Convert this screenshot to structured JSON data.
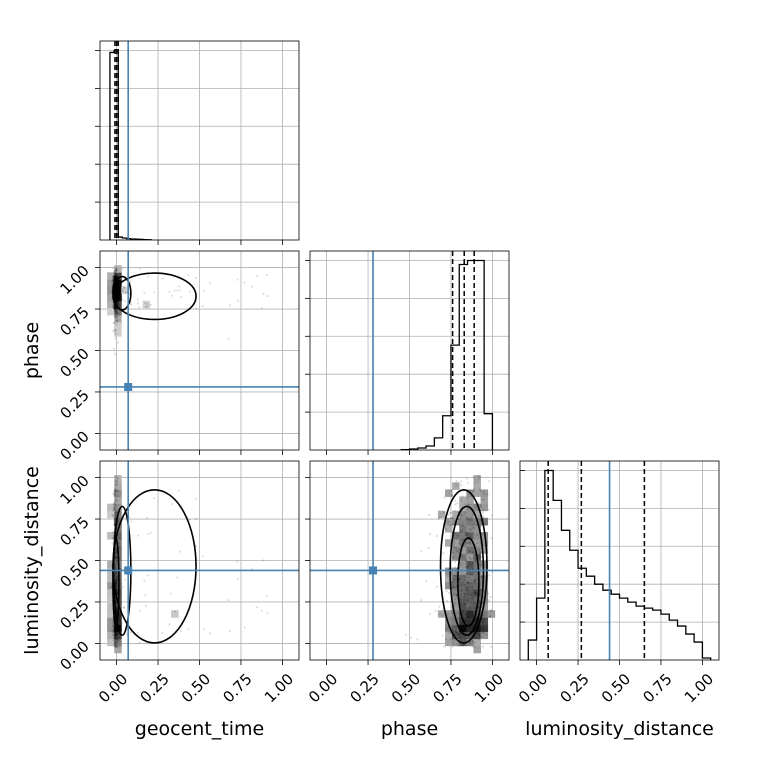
{
  "chart_data": {
    "type": "corner",
    "parameters": [
      "geocent_time",
      "phase",
      "luminosity_distance"
    ],
    "axis_labels": {
      "x": [
        "geocent_time",
        "phase",
        "luminosity_distance"
      ],
      "y": [
        "",
        "phase",
        "luminosity_distance"
      ]
    },
    "tick_values": [
      0.0,
      0.25,
      0.5,
      0.75,
      1.0
    ],
    "tick_labels": [
      "0.00",
      "0.25",
      "0.50",
      "0.75",
      "1.00"
    ],
    "ranges": {
      "geocent_time": [
        -0.1,
        1.1
      ],
      "phase": [
        -0.1,
        1.1
      ],
      "luminosity_distance": [
        -0.1,
        1.1
      ]
    },
    "truths": {
      "geocent_time": 0.07,
      "phase": 0.28,
      "luminosity_distance": 0.44
    },
    "truth_color": "#4682b4",
    "grid": true,
    "histograms": {
      "geocent_time": {
        "bins": [
          -0.04,
          -0.015,
          0.01,
          0.035,
          0.06,
          0.085,
          0.11,
          0.135,
          0.16,
          0.185,
          0.21
        ],
        "counts": [
          0.95,
          0.96,
          0.015,
          0.01,
          0.007,
          0.005,
          0.004,
          0.003,
          0.002,
          0.001
        ],
        "quantiles": [
          -0.01,
          0.0,
          0.01
        ]
      },
      "phase": {
        "bins": [
          0.45,
          0.5,
          0.55,
          0.6,
          0.65,
          0.7,
          0.75,
          0.8,
          0.85,
          0.9,
          0.95,
          1.0
        ],
        "counts": [
          0.002,
          0.005,
          0.01,
          0.02,
          0.06,
          0.17,
          0.52,
          0.92,
          0.94,
          0.94,
          0.18
        ],
        "quantiles": [
          0.76,
          0.83,
          0.89
        ]
      },
      "luminosity_distance": {
        "bins": [
          -0.05,
          0.0,
          0.05,
          0.1,
          0.15,
          0.2,
          0.25,
          0.3,
          0.35,
          0.4,
          0.45,
          0.5,
          0.55,
          0.6,
          0.65,
          0.7,
          0.75,
          0.8,
          0.85,
          0.9,
          0.95,
          1.0,
          1.05
        ],
        "counts": [
          0.1,
          0.31,
          0.95,
          0.8,
          0.65,
          0.55,
          0.46,
          0.42,
          0.38,
          0.35,
          0.33,
          0.31,
          0.29,
          0.27,
          0.26,
          0.25,
          0.23,
          0.2,
          0.17,
          0.13,
          0.09,
          0.01
        ],
        "quantiles": [
          0.07,
          0.27,
          0.65
        ]
      }
    }
  }
}
